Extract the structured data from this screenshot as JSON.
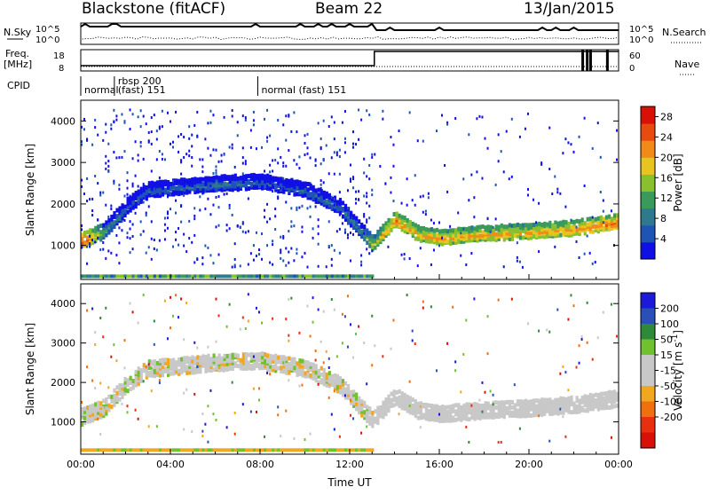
{
  "header": {
    "title": "Blackstone (fitACF)",
    "beam": "Beam 22",
    "date": "13/Jan/2015"
  },
  "top_panels": {
    "nsky_label": "N.Sky",
    "nsearch_label": "N.Search",
    "count_ticks": [
      "10^5",
      "10^0"
    ],
    "freq_label_lines": [
      "Freq.",
      "[MHz]"
    ],
    "freq_ticks": [
      "18",
      "8"
    ],
    "nave_label": "Nave",
    "nave_ticks": [
      "60",
      "0"
    ],
    "cpid_label": "CPID",
    "cpid_segments": [
      {
        "start_h": 0.0,
        "label": "normal"
      },
      {
        "start_h": 1.5,
        "label": "rbsp 200"
      },
      {
        "start_h": 1.5,
        "label": "(fast) 151"
      },
      {
        "start_h": 7.9,
        "label": "normal (fast)  151"
      }
    ]
  },
  "colors": {
    "power_scale": [
      "#1010e6",
      "#1e54b4",
      "#2e7a8c",
      "#3a9a5a",
      "#88c030",
      "#e8c420",
      "#f08a18",
      "#e84a10",
      "#d81008"
    ],
    "velocity_scale": [
      "#1a1ad8",
      "#2a50b8",
      "#2e8a3a",
      "#70c030",
      "#c8c8c8",
      "#c8c8c8",
      "#f0a820",
      "#f07010",
      "#e83010",
      "#d81008"
    ]
  },
  "chart_data": [
    {
      "type": "heatmap",
      "panel": "power",
      "xlabel": "",
      "ylabel": "Slant Range [km]",
      "xlim": [
        0,
        24
      ],
      "ylim": [
        180,
        4500
      ],
      "ytick_labels": [
        "1000",
        "2000",
        "3000",
        "4000"
      ],
      "colorbar_label": "Power [dB]",
      "colorbar_range": [
        0,
        30
      ],
      "colorbar_ticks": [
        "4",
        "8",
        "12",
        "16",
        "20",
        "24",
        "28"
      ],
      "main_band": [
        {
          "t": 0.0,
          "r": 1080,
          "p": 27
        },
        {
          "t": 1.0,
          "r": 1300,
          "p": 12
        },
        {
          "t": 2.0,
          "r": 1900,
          "p": 6
        },
        {
          "t": 3.0,
          "r": 2300,
          "p": 6
        },
        {
          "t": 4.0,
          "r": 2350,
          "p": 6
        },
        {
          "t": 6.0,
          "r": 2450,
          "p": 8
        },
        {
          "t": 8.0,
          "r": 2500,
          "p": 6
        },
        {
          "t": 10.0,
          "r": 2300,
          "p": 6
        },
        {
          "t": 11.5,
          "r": 1900,
          "p": 8
        },
        {
          "t": 12.5,
          "r": 1300,
          "p": 10
        },
        {
          "t": 13.0,
          "r": 1000,
          "p": 16
        },
        {
          "t": 14.0,
          "r": 1600,
          "p": 22
        },
        {
          "t": 15.0,
          "r": 1250,
          "p": 20
        },
        {
          "t": 16.0,
          "r": 1150,
          "p": 21
        },
        {
          "t": 18.0,
          "r": 1250,
          "p": 20
        },
        {
          "t": 20.0,
          "r": 1300,
          "p": 20
        },
        {
          "t": 22.0,
          "r": 1380,
          "p": 21
        },
        {
          "t": 24.0,
          "r": 1550,
          "p": 23
        }
      ]
    },
    {
      "type": "heatmap",
      "panel": "velocity",
      "xlabel": "Time UT",
      "ylabel": "Slant Range [km]",
      "xlim": [
        0,
        24
      ],
      "ylim": [
        180,
        4500
      ],
      "xtick_labels": [
        "00:00",
        "04:00",
        "08:00",
        "12:00",
        "16:00",
        "20:00",
        "00:00"
      ],
      "ytick_labels": [
        "1000",
        "2000",
        "3000",
        "4000"
      ],
      "colorbar_label": "Velocity [m s",
      "colorbar_label_exponent": "-1",
      "colorbar_label_close": "]",
      "colorbar_ticks": [
        "200",
        "100",
        "50",
        "15",
        "-15",
        "-50",
        "-100",
        "-200"
      ]
    }
  ]
}
